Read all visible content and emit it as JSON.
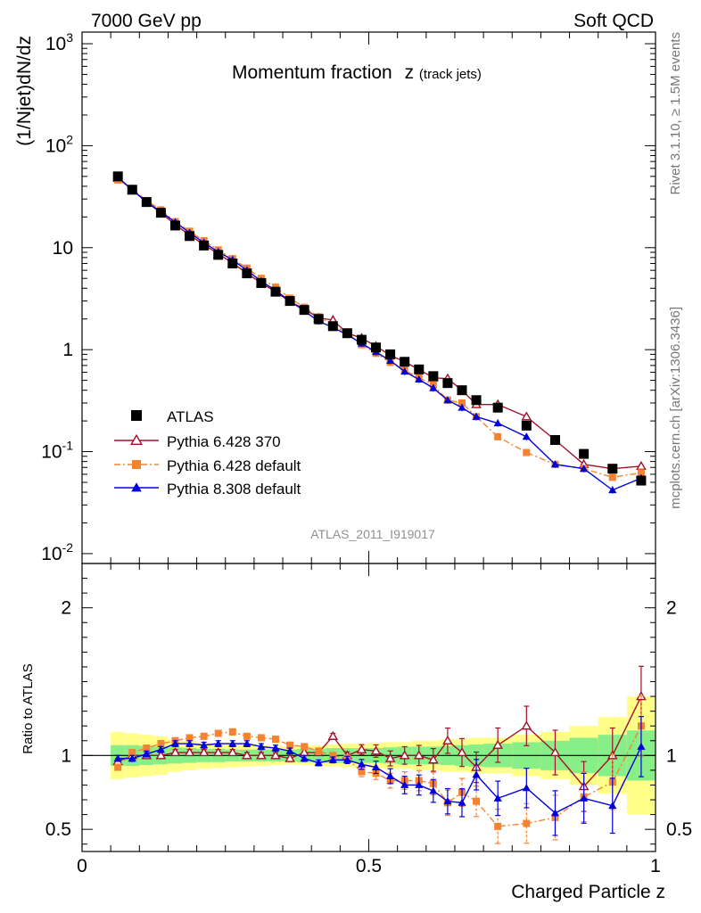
{
  "header": {
    "left": "7000 GeV pp",
    "right": "Soft QCD"
  },
  "side_labels": {
    "upper": "Rivet 3.1.10, ≥ 1.5M events",
    "lower": "mcplots.cern.ch [arXiv:1306.3436]"
  },
  "chart_data": {
    "type": "line",
    "title": "Momentum fraction",
    "title_var": "z",
    "title_sub": "(track jets)",
    "analysis_id": "ATLAS_2011_I919017",
    "xlabel": "Charged Particle z",
    "ylabel": "(1/Njet)dN/dz",
    "ratio_ylabel": "Ratio to ATLAS",
    "xlim": [
      0,
      1
    ],
    "ylim": [
      0.008,
      1300
    ],
    "yscale": "log",
    "ratio_ylim": [
      0.35,
      2.3
    ],
    "x_tick_labels": [
      "0",
      "0.5",
      "1"
    ],
    "y_tick_labels": [
      "10^{-2}",
      "10^{-1}",
      "1",
      "10",
      "10^{2}",
      "10^{3}"
    ],
    "ratio_tick_labels": [
      "0.5",
      "1",
      "2"
    ],
    "legend_position": "bottom-left",
    "x": [
      0.0625,
      0.0875,
      0.1125,
      0.1375,
      0.1625,
      0.1875,
      0.2125,
      0.2375,
      0.2625,
      0.2875,
      0.3125,
      0.3375,
      0.3625,
      0.3875,
      0.4125,
      0.4375,
      0.4625,
      0.4875,
      0.5125,
      0.5375,
      0.5625,
      0.5875,
      0.6125,
      0.6375,
      0.6625,
      0.6875,
      0.725,
      0.775,
      0.825,
      0.875,
      0.925,
      0.975
    ],
    "band_edges": [
      0.05,
      0.075,
      0.1,
      0.125,
      0.15,
      0.175,
      0.2,
      0.225,
      0.25,
      0.275,
      0.3,
      0.325,
      0.35,
      0.375,
      0.4,
      0.425,
      0.45,
      0.475,
      0.5,
      0.525,
      0.55,
      0.575,
      0.6,
      0.625,
      0.65,
      0.675,
      0.7,
      0.75,
      0.8,
      0.85,
      0.9,
      0.95,
      1.0
    ],
    "band_inner": [
      0.07,
      0.07,
      0.065,
      0.06,
      0.055,
      0.05,
      0.045,
      0.045,
      0.04,
      0.04,
      0.04,
      0.04,
      0.04,
      0.045,
      0.045,
      0.05,
      0.05,
      0.05,
      0.05,
      0.055,
      0.06,
      0.06,
      0.06,
      0.065,
      0.07,
      0.075,
      0.08,
      0.09,
      0.1,
      0.12,
      0.14,
      0.17
    ],
    "band_outer": [
      0.16,
      0.15,
      0.14,
      0.13,
      0.11,
      0.1,
      0.09,
      0.085,
      0.08,
      0.075,
      0.07,
      0.065,
      0.06,
      0.065,
      0.07,
      0.075,
      0.08,
      0.08,
      0.085,
      0.09,
      0.09,
      0.1,
      0.1,
      0.11,
      0.11,
      0.12,
      0.12,
      0.14,
      0.16,
      0.2,
      0.26,
      0.4
    ],
    "series": [
      {
        "name": "ATLAS",
        "color": "#000000",
        "marker": "square",
        "line": "none",
        "values": [
          50,
          37,
          28,
          22,
          16.5,
          13,
          10.5,
          8.5,
          7,
          5.6,
          4.5,
          3.7,
          3.0,
          2.45,
          2.0,
          1.7,
          1.45,
          1.25,
          1.05,
          0.9,
          0.76,
          0.64,
          0.55,
          0.47,
          0.4,
          0.32,
          0.27,
          0.18,
          0.13,
          0.095,
          0.068,
          0.052
        ]
      },
      {
        "name": "Pythia 6.428 370",
        "color": "#a50f2a",
        "marker": "triangle-open",
        "line": "solid",
        "values": [
          48,
          37,
          28,
          22,
          16.8,
          13.3,
          10.7,
          8.7,
          7.1,
          5.6,
          4.5,
          3.7,
          2.95,
          2.5,
          2.05,
          1.95,
          1.45,
          1.3,
          1.08,
          0.88,
          0.76,
          0.64,
          0.53,
          0.52,
          0.4,
          0.29,
          0.29,
          0.22,
          0.13,
          0.075,
          0.068,
          0.072
        ],
        "ratio": [
          0.96,
          1.0,
          1.0,
          1.0,
          1.02,
          1.02,
          1.02,
          1.02,
          1.02,
          1.0,
          1.0,
          1.0,
          0.98,
          1.02,
          1.02,
          1.13,
          1.0,
          1.04,
          1.03,
          0.98,
          1.0,
          1.0,
          0.97,
          1.1,
          1.02,
          0.92,
          1.07,
          1.2,
          1.02,
          0.79,
          1.0,
          1.4
        ]
      },
      {
        "name": "Pythia 6.428 default",
        "color": "#f58231",
        "marker": "square",
        "line": "dashdot",
        "values": [
          46,
          38,
          29,
          23.5,
          18,
          14.5,
          11.7,
          9.5,
          7.8,
          6.3,
          5.0,
          4.1,
          3.2,
          2.6,
          2.1,
          1.75,
          1.45,
          1.12,
          0.92,
          0.75,
          0.63,
          0.53,
          0.45,
          0.32,
          0.3,
          0.22,
          0.14,
          0.098,
          0.075,
          0.068,
          0.056,
          0.062
        ],
        "ratio": [
          0.92,
          1.02,
          1.05,
          1.08,
          1.1,
          1.12,
          1.13,
          1.15,
          1.16,
          1.13,
          1.12,
          1.11,
          1.07,
          1.06,
          1.03,
          1.0,
          0.98,
          0.89,
          0.88,
          0.83,
          0.83,
          0.83,
          0.81,
          0.68,
          0.75,
          0.69,
          0.52,
          0.54,
          0.58,
          0.72,
          0.82,
          1.2
        ]
      },
      {
        "name": "Pythia 8.308 default",
        "color": "#0000dd",
        "marker": "triangle",
        "line": "solid",
        "values": [
          49,
          37,
          28,
          22.5,
          17.8,
          14,
          11.2,
          9.1,
          7.6,
          6.0,
          4.7,
          3.8,
          3.0,
          2.4,
          1.9,
          1.65,
          1.4,
          1.15,
          0.95,
          0.78,
          0.61,
          0.51,
          0.42,
          0.32,
          0.27,
          0.22,
          0.19,
          0.14,
          0.075,
          0.068,
          0.042,
          0.055
        ],
        "ratio": [
          0.98,
          0.98,
          1.01,
          1.04,
          1.08,
          1.08,
          1.07,
          1.08,
          1.08,
          1.08,
          1.06,
          1.05,
          1.03,
          0.98,
          0.95,
          0.97,
          0.97,
          0.94,
          0.92,
          0.86,
          0.8,
          0.8,
          0.76,
          0.69,
          0.68,
          0.87,
          0.71,
          0.78,
          0.61,
          0.71,
          0.66,
          1.06
        ]
      }
    ]
  }
}
